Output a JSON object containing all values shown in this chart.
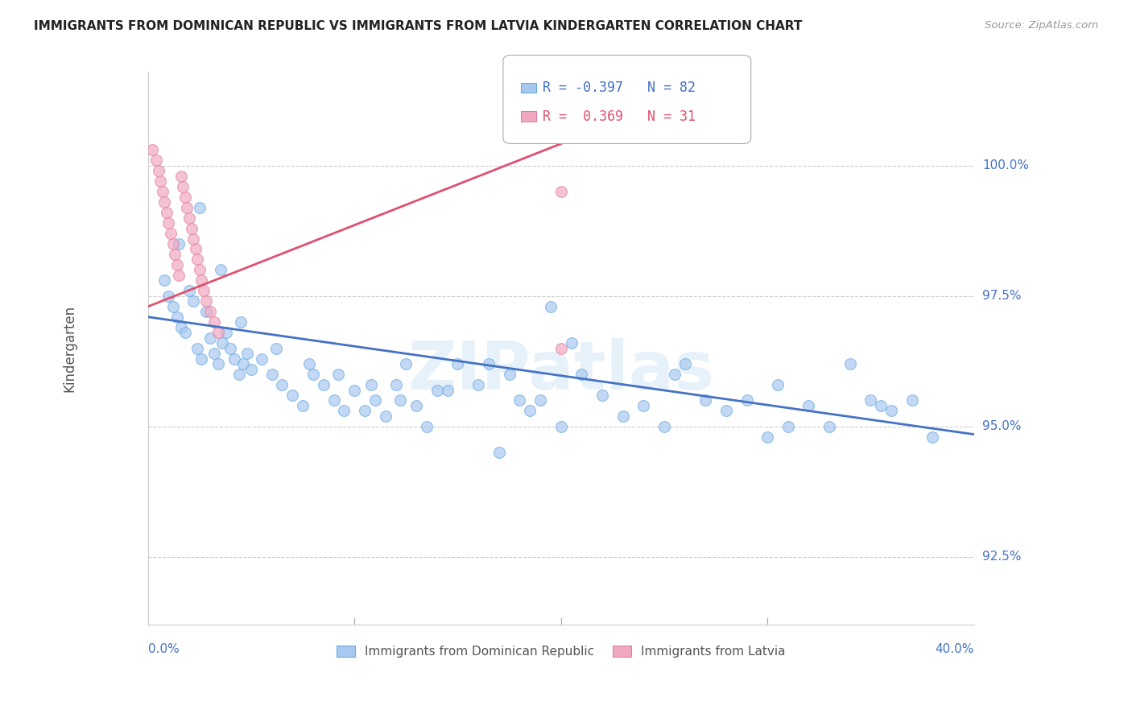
{
  "title": "IMMIGRANTS FROM DOMINICAN REPUBLIC VS IMMIGRANTS FROM LATVIA KINDERGARTEN CORRELATION CHART",
  "source": "Source: ZipAtlas.com",
  "ylabel": "Kindergarten",
  "yticks": [
    92.5,
    95.0,
    97.5,
    100.0
  ],
  "ytick_labels": [
    "92.5%",
    "95.0%",
    "97.5%",
    "100.0%"
  ],
  "xlim": [
    0.0,
    0.4
  ],
  "ylim": [
    91.2,
    101.8
  ],
  "legend_blue_r": "-0.397",
  "legend_blue_n": "82",
  "legend_pink_r": "0.369",
  "legend_pink_n": "31",
  "blue_color": "#a8c8f0",
  "pink_color": "#f0a8c0",
  "blue_line_color": "#4472c4",
  "pink_line_color": "#e05070",
  "axis_label_color": "#4472c4",
  "watermark": "ZIPatlas",
  "blue_points_x": [
    0.008,
    0.01,
    0.012,
    0.014,
    0.016,
    0.018,
    0.02,
    0.022,
    0.024,
    0.026,
    0.028,
    0.03,
    0.032,
    0.034,
    0.036,
    0.038,
    0.04,
    0.042,
    0.044,
    0.046,
    0.048,
    0.05,
    0.055,
    0.06,
    0.065,
    0.07,
    0.075,
    0.08,
    0.085,
    0.09,
    0.095,
    0.1,
    0.105,
    0.11,
    0.115,
    0.12,
    0.125,
    0.13,
    0.135,
    0.14,
    0.15,
    0.16,
    0.17,
    0.175,
    0.18,
    0.185,
    0.19,
    0.2,
    0.21,
    0.22,
    0.23,
    0.24,
    0.25,
    0.26,
    0.27,
    0.28,
    0.29,
    0.3,
    0.31,
    0.32,
    0.33,
    0.34,
    0.35,
    0.36,
    0.37,
    0.38,
    0.015,
    0.025,
    0.035,
    0.045,
    0.062,
    0.078,
    0.092,
    0.108,
    0.122,
    0.145,
    0.165,
    0.205,
    0.255,
    0.305,
    0.355,
    0.195
  ],
  "blue_points_y": [
    97.8,
    97.5,
    97.3,
    97.1,
    96.9,
    96.8,
    97.6,
    97.4,
    96.5,
    96.3,
    97.2,
    96.7,
    96.4,
    96.2,
    96.6,
    96.8,
    96.5,
    96.3,
    96.0,
    96.2,
    96.4,
    96.1,
    96.3,
    96.0,
    95.8,
    95.6,
    95.4,
    96.0,
    95.8,
    95.5,
    95.3,
    95.7,
    95.3,
    95.5,
    95.2,
    95.8,
    96.2,
    95.4,
    95.0,
    95.7,
    96.2,
    95.8,
    94.5,
    96.0,
    95.5,
    95.3,
    95.5,
    95.0,
    96.0,
    95.6,
    95.2,
    95.4,
    95.0,
    96.2,
    95.5,
    95.3,
    95.5,
    94.8,
    95.0,
    95.4,
    95.0,
    96.2,
    95.5,
    95.3,
    95.5,
    94.8,
    98.5,
    99.2,
    98.0,
    97.0,
    96.5,
    96.2,
    96.0,
    95.8,
    95.5,
    95.7,
    96.2,
    96.6,
    96.0,
    95.8,
    95.4,
    97.3
  ],
  "pink_points_x": [
    0.002,
    0.004,
    0.005,
    0.006,
    0.007,
    0.008,
    0.009,
    0.01,
    0.011,
    0.012,
    0.013,
    0.014,
    0.015,
    0.016,
    0.017,
    0.018,
    0.019,
    0.02,
    0.021,
    0.022,
    0.023,
    0.024,
    0.025,
    0.026,
    0.027,
    0.028,
    0.03,
    0.032,
    0.034,
    0.2,
    0.2
  ],
  "pink_points_y": [
    100.3,
    100.1,
    99.9,
    99.7,
    99.5,
    99.3,
    99.1,
    98.9,
    98.7,
    98.5,
    98.3,
    98.1,
    97.9,
    99.8,
    99.6,
    99.4,
    99.2,
    99.0,
    98.8,
    98.6,
    98.4,
    98.2,
    98.0,
    97.8,
    97.6,
    97.4,
    97.2,
    97.0,
    96.8,
    99.5,
    96.5
  ],
  "blue_trend_x": [
    0.0,
    0.4
  ],
  "blue_trend_y": [
    97.1,
    94.85
  ],
  "pink_trend_x": [
    0.0,
    0.25
  ],
  "pink_trend_y": [
    97.3,
    101.2
  ]
}
